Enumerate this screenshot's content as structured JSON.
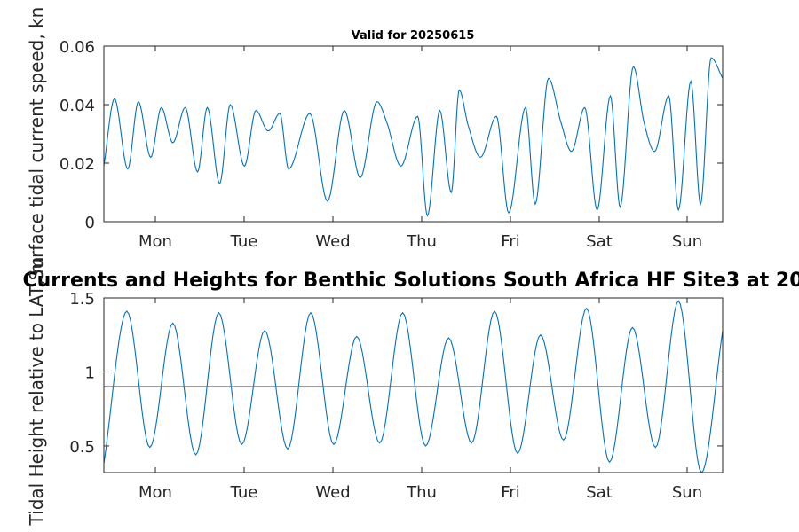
{
  "figure": {
    "top_title": "Valid for 20250615",
    "bottom_title": "Currents and Heights for Benthic Solutions South Africa HF Site3 at 20"
  },
  "chart_data": [
    {
      "type": "line",
      "title": "Valid for 20250615",
      "ylabel": "Surface tidal current speed, kn",
      "xlabel": "",
      "x_tick_labels": [
        "Mon",
        "Tue",
        "Wed",
        "Thu",
        "Fri",
        "Sat",
        "Sun"
      ],
      "xlim_days": [
        0,
        7
      ],
      "ylim": [
        0,
        0.06
      ],
      "y_ticks": [
        0,
        0.02,
        0.04,
        0.06
      ],
      "y_tick_labels": [
        "0",
        "0.02",
        "0.04",
        "0.06"
      ],
      "line_color": "#0072BD",
      "grid": false,
      "series": [
        {
          "x": [
            0.0,
            0.12,
            0.27,
            0.39,
            0.53,
            0.65,
            0.78,
            0.92,
            1.06,
            1.17,
            1.31,
            1.43,
            1.59,
            1.72,
            1.86,
            1.99,
            2.09,
            2.33,
            2.53,
            2.72,
            2.9,
            3.09,
            3.2,
            3.36,
            3.55,
            3.66,
            3.8,
            3.93,
            4.02,
            4.12,
            4.26,
            4.44,
            4.58,
            4.77,
            4.88,
            5.03,
            5.17,
            5.29,
            5.44,
            5.58,
            5.73,
            5.84,
            5.99,
            6.11,
            6.23,
            6.39,
            6.5,
            6.64,
            6.75,
            6.87,
            7.0
          ],
          "values": [
            0.019,
            0.042,
            0.018,
            0.041,
            0.022,
            0.039,
            0.027,
            0.039,
            0.017,
            0.039,
            0.013,
            0.04,
            0.019,
            0.038,
            0.031,
            0.037,
            0.018,
            0.037,
            0.007,
            0.038,
            0.015,
            0.041,
            0.034,
            0.019,
            0.036,
            0.002,
            0.038,
            0.01,
            0.045,
            0.033,
            0.022,
            0.036,
            0.003,
            0.039,
            0.006,
            0.049,
            0.034,
            0.024,
            0.039,
            0.004,
            0.043,
            0.005,
            0.053,
            0.034,
            0.024,
            0.043,
            0.004,
            0.048,
            0.006,
            0.056,
            0.049
          ]
        }
      ]
    },
    {
      "type": "line",
      "title": "Currents and Heights for Benthic Solutions South Africa HF Site3 at 20",
      "ylabel": "Tidal Height relative to LAT, m",
      "xlabel": "",
      "x_tick_labels": [
        "Mon",
        "Tue",
        "Wed",
        "Thu",
        "Fri",
        "Sat",
        "Sun"
      ],
      "xlim_days": [
        0,
        7
      ],
      "ylim": [
        0.32,
        1.5
      ],
      "y_ticks": [
        0.5,
        1,
        1.5
      ],
      "y_tick_labels": [
        "0.5",
        "1",
        "1.5"
      ],
      "reference_line": 0.9,
      "line_color": "#0072BD",
      "grid": false,
      "series": [
        {
          "x": [
            0.0,
            0.26,
            0.52,
            0.78,
            1.04,
            1.3,
            1.56,
            1.82,
            2.08,
            2.34,
            2.6,
            2.86,
            3.12,
            3.38,
            3.64,
            3.9,
            4.16,
            4.42,
            4.68,
            4.94,
            5.2,
            5.46,
            5.72,
            5.98,
            6.24,
            6.5,
            6.76,
            7.0
          ],
          "values": [
            0.38,
            1.41,
            0.49,
            1.33,
            0.44,
            1.4,
            0.51,
            1.28,
            0.48,
            1.4,
            0.51,
            1.24,
            0.52,
            1.4,
            0.5,
            1.23,
            0.52,
            1.41,
            0.45,
            1.25,
            0.54,
            1.43,
            0.39,
            1.3,
            0.49,
            1.48,
            0.32,
            1.28
          ]
        }
      ]
    }
  ]
}
